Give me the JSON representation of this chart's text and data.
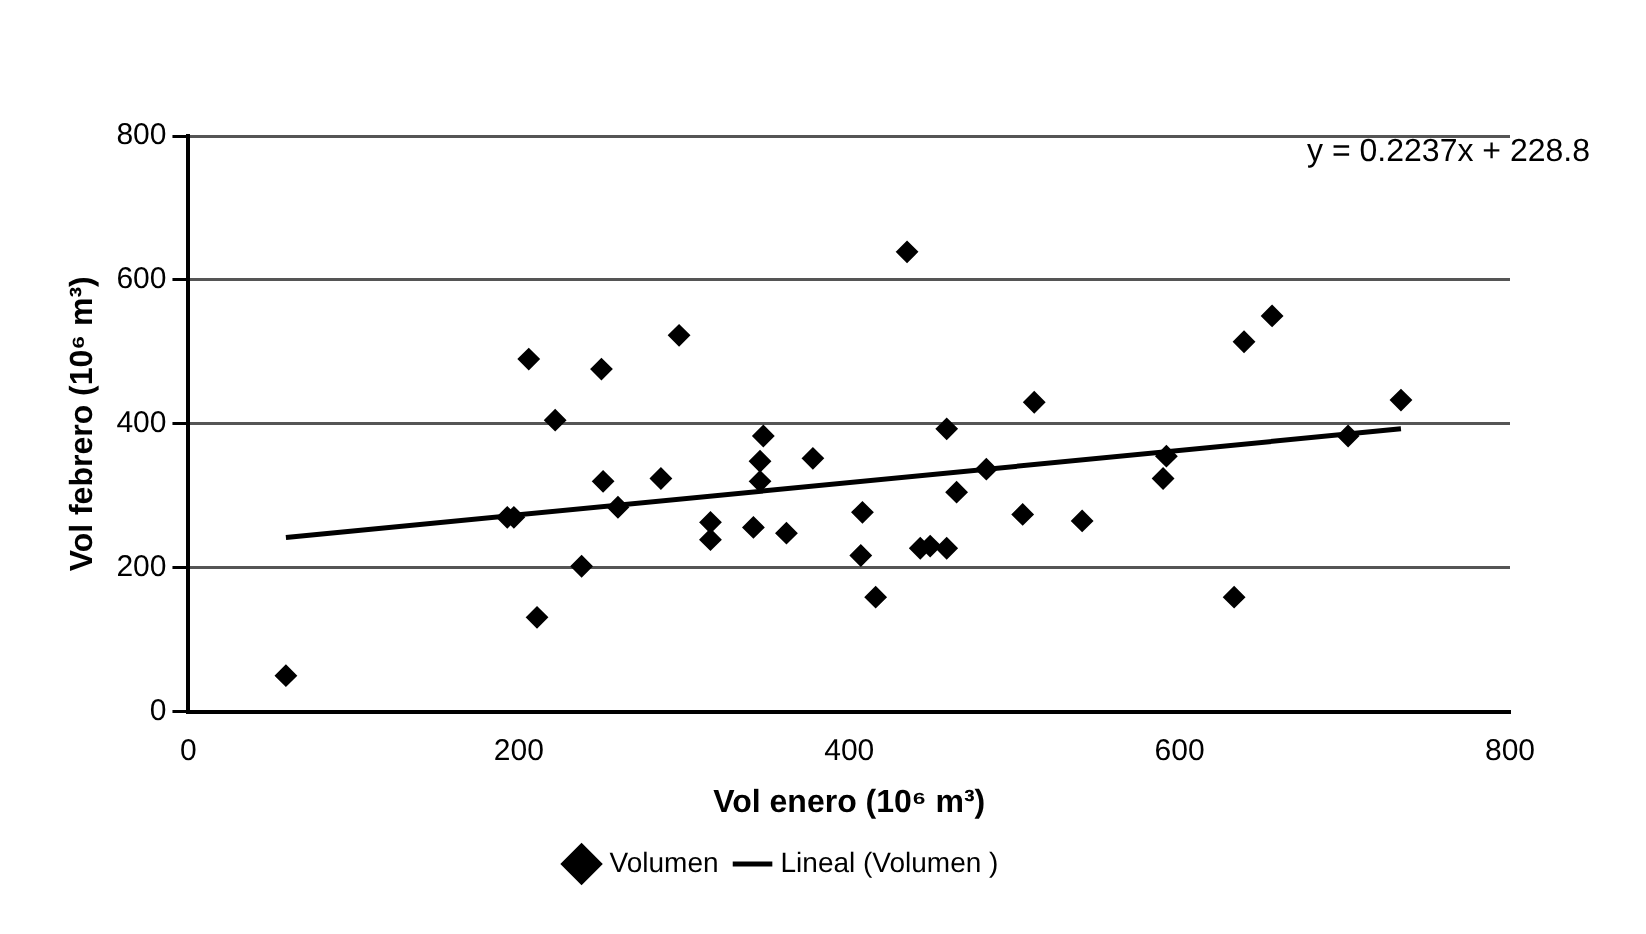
{
  "chart_data": {
    "type": "scatter",
    "xlabel": "Vol enero (10⁶ m³)",
    "ylabel": "Vol febrero (10⁶ m³)",
    "xlim": [
      0,
      800
    ],
    "xticks": [
      0,
      200,
      400,
      600,
      800
    ],
    "ylim": [
      0,
      800
    ],
    "yticks": [
      0,
      200,
      400,
      600,
      800
    ],
    "grid": "y",
    "legend": "bottom",
    "marker": "diamond",
    "annotations": [
      "y = 0.2237x + 228.8"
    ],
    "series": [
      {
        "name": "Volumen",
        "color": "#000000",
        "x": [
          59,
          193,
          197,
          206,
          211,
          222,
          238,
          250,
          251,
          260,
          286,
          297,
          316,
          316,
          342,
          348,
          346,
          346,
          362,
          378,
          408,
          407,
          416,
          435,
          443,
          449,
          459,
          459,
          465,
          483,
          505,
          512,
          541,
          592,
          590,
          633,
          639,
          656,
          702,
          734
        ],
        "values": [
          50,
          270,
          270,
          490,
          131,
          405,
          202,
          476,
          320,
          284,
          324,
          523,
          263,
          239,
          256,
          383,
          348,
          320,
          248,
          352,
          277,
          217,
          159,
          639,
          227,
          230,
          227,
          393,
          305,
          337,
          274,
          430,
          265,
          355,
          324,
          159,
          514,
          550,
          383,
          433
        ]
      },
      {
        "name": "Lineal (Volumen )",
        "type": "line",
        "color": "#000000",
        "marker": "none",
        "x": [
          59,
          734
        ],
        "values": [
          242,
          393
        ]
      }
    ]
  }
}
